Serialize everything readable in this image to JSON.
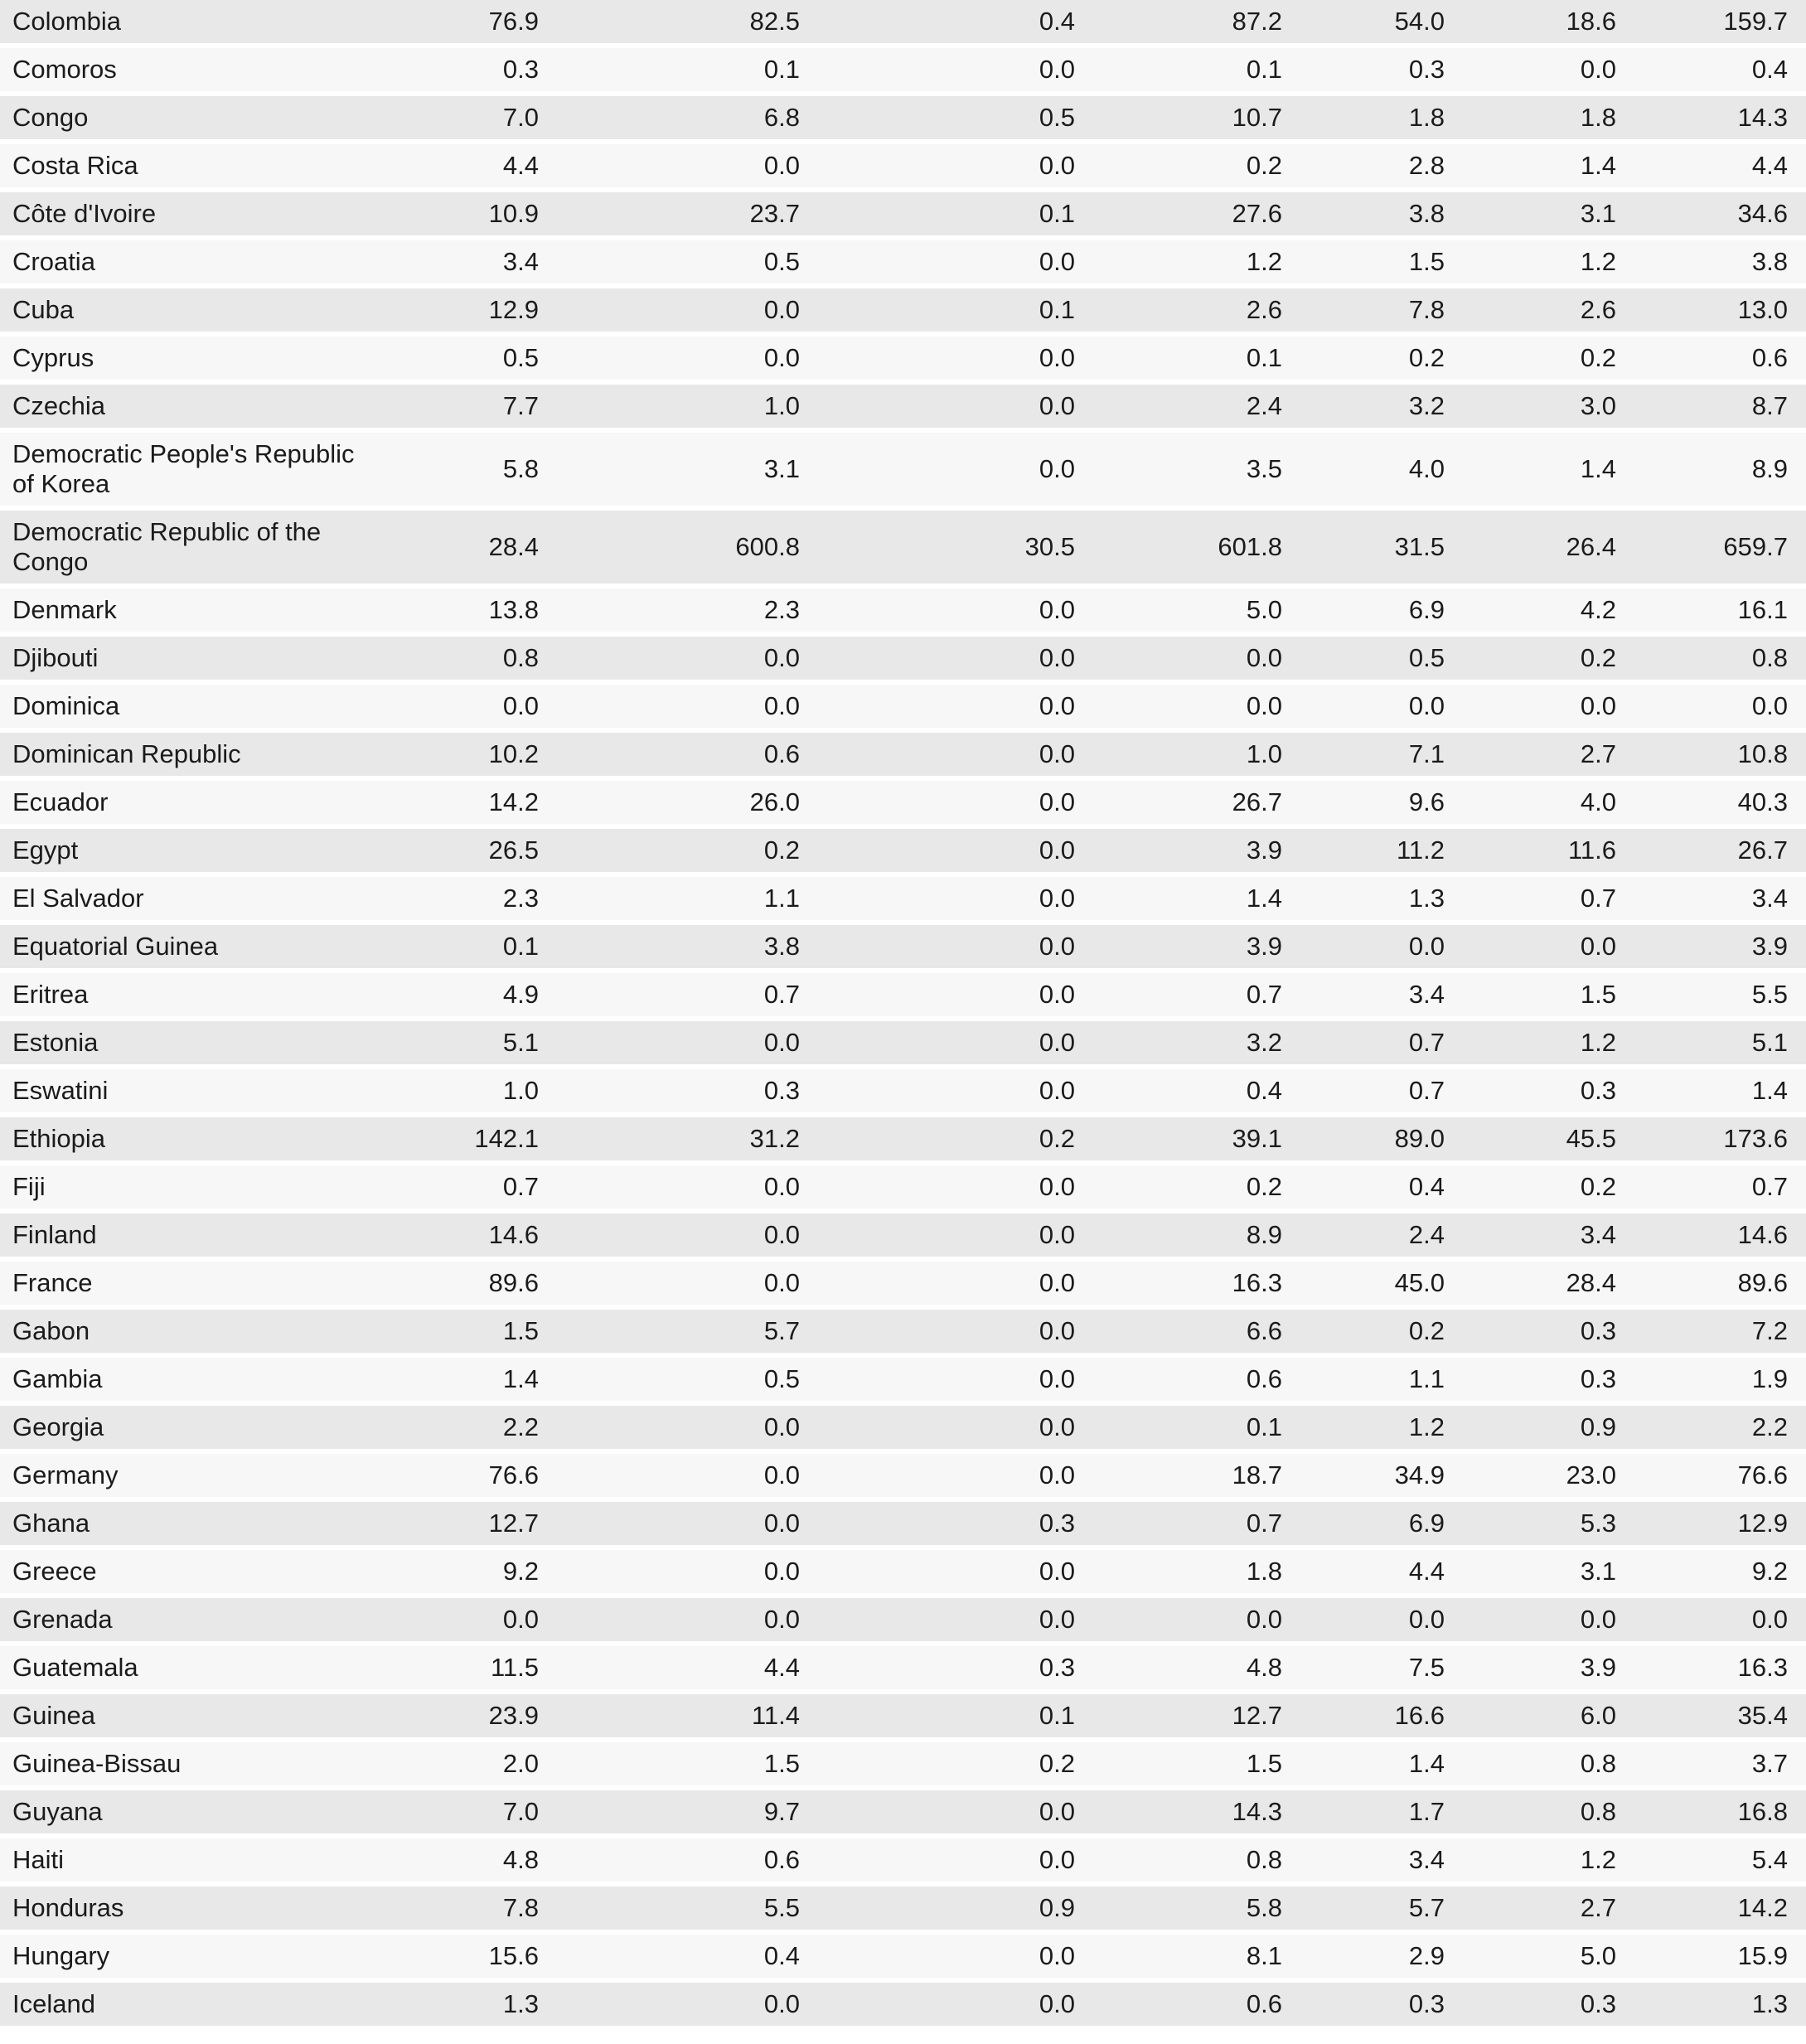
{
  "styles": {
    "shaded_row_color": "#e8e8e8",
    "plain_row_color": "#f7f7f7",
    "gap_color": "#ffffff",
    "text_color": "#1b1b1b"
  },
  "chart_data": {
    "type": "table",
    "title": "",
    "columns": [
      "country",
      "v1",
      "v2",
      "v3",
      "v4",
      "v5",
      "v6",
      "v7"
    ],
    "rows": [
      {
        "country": "Colombia",
        "values": [
          "76.9",
          "82.5",
          "0.4",
          "87.2",
          "54.0",
          "18.6",
          "159.7"
        ]
      },
      {
        "country": "Comoros",
        "values": [
          "0.3",
          "0.1",
          "0.0",
          "0.1",
          "0.3",
          "0.0",
          "0.4"
        ]
      },
      {
        "country": "Congo",
        "values": [
          "7.0",
          "6.8",
          "0.5",
          "10.7",
          "1.8",
          "1.8",
          "14.3"
        ]
      },
      {
        "country": "Costa Rica",
        "values": [
          "4.4",
          "0.0",
          "0.0",
          "0.2",
          "2.8",
          "1.4",
          "4.4"
        ]
      },
      {
        "country": "Côte d'Ivoire",
        "values": [
          "10.9",
          "23.7",
          "0.1",
          "27.6",
          "3.8",
          "3.1",
          "34.6"
        ]
      },
      {
        "country": "Croatia",
        "values": [
          "3.4",
          "0.5",
          "0.0",
          "1.2",
          "1.5",
          "1.2",
          "3.8"
        ]
      },
      {
        "country": "Cuba",
        "values": [
          "12.9",
          "0.0",
          "0.1",
          "2.6",
          "7.8",
          "2.6",
          "13.0"
        ]
      },
      {
        "country": "Cyprus",
        "values": [
          "0.5",
          "0.0",
          "0.0",
          "0.1",
          "0.2",
          "0.2",
          "0.6"
        ]
      },
      {
        "country": "Czechia",
        "values": [
          "7.7",
          "1.0",
          "0.0",
          "2.4",
          "3.2",
          "3.0",
          "8.7"
        ]
      },
      {
        "country": "Democratic People's Republic of Korea",
        "values": [
          "5.8",
          "3.1",
          "0.0",
          "3.5",
          "4.0",
          "1.4",
          "8.9"
        ]
      },
      {
        "country": "Democratic Republic of the Congo",
        "values": [
          "28.4",
          "600.8",
          "30.5",
          "601.8",
          "31.5",
          "26.4",
          "659.7"
        ]
      },
      {
        "country": "Denmark",
        "values": [
          "13.8",
          "2.3",
          "0.0",
          "5.0",
          "6.9",
          "4.2",
          "16.1"
        ]
      },
      {
        "country": "Djibouti",
        "values": [
          "0.8",
          "0.0",
          "0.0",
          "0.0",
          "0.5",
          "0.2",
          "0.8"
        ]
      },
      {
        "country": "Dominica",
        "values": [
          "0.0",
          "0.0",
          "0.0",
          "0.0",
          "0.0",
          "0.0",
          "0.0"
        ]
      },
      {
        "country": "Dominican Republic",
        "values": [
          "10.2",
          "0.6",
          "0.0",
          "1.0",
          "7.1",
          "2.7",
          "10.8"
        ]
      },
      {
        "country": "Ecuador",
        "values": [
          "14.2",
          "26.0",
          "0.0",
          "26.7",
          "9.6",
          "4.0",
          "40.3"
        ]
      },
      {
        "country": "Egypt",
        "values": [
          "26.5",
          "0.2",
          "0.0",
          "3.9",
          "11.2",
          "11.6",
          "26.7"
        ]
      },
      {
        "country": "El Salvador",
        "values": [
          "2.3",
          "1.1",
          "0.0",
          "1.4",
          "1.3",
          "0.7",
          "3.4"
        ]
      },
      {
        "country": "Equatorial Guinea",
        "values": [
          "0.1",
          "3.8",
          "0.0",
          "3.9",
          "0.0",
          "0.0",
          "3.9"
        ]
      },
      {
        "country": "Eritrea",
        "values": [
          "4.9",
          "0.7",
          "0.0",
          "0.7",
          "3.4",
          "1.5",
          "5.5"
        ]
      },
      {
        "country": "Estonia",
        "values": [
          "5.1",
          "0.0",
          "0.0",
          "3.2",
          "0.7",
          "1.2",
          "5.1"
        ]
      },
      {
        "country": "Eswatini",
        "values": [
          "1.0",
          "0.3",
          "0.0",
          "0.4",
          "0.7",
          "0.3",
          "1.4"
        ]
      },
      {
        "country": "Ethiopia",
        "values": [
          "142.1",
          "31.2",
          "0.2",
          "39.1",
          "89.0",
          "45.5",
          "173.6"
        ]
      },
      {
        "country": "Fiji",
        "values": [
          "0.7",
          "0.0",
          "0.0",
          "0.2",
          "0.4",
          "0.2",
          "0.7"
        ]
      },
      {
        "country": "Finland",
        "values": [
          "14.6",
          "0.0",
          "0.0",
          "8.9",
          "2.4",
          "3.4",
          "14.6"
        ]
      },
      {
        "country": "France",
        "values": [
          "89.6",
          "0.0",
          "0.0",
          "16.3",
          "45.0",
          "28.4",
          "89.6"
        ]
      },
      {
        "country": "Gabon",
        "values": [
          "1.5",
          "5.7",
          "0.0",
          "6.6",
          "0.2",
          "0.3",
          "7.2"
        ]
      },
      {
        "country": "Gambia",
        "values": [
          "1.4",
          "0.5",
          "0.0",
          "0.6",
          "1.1",
          "0.3",
          "1.9"
        ]
      },
      {
        "country": "Georgia",
        "values": [
          "2.2",
          "0.0",
          "0.0",
          "0.1",
          "1.2",
          "0.9",
          "2.2"
        ]
      },
      {
        "country": "Germany",
        "values": [
          "76.6",
          "0.0",
          "0.0",
          "18.7",
          "34.9",
          "23.0",
          "76.6"
        ]
      },
      {
        "country": "Ghana",
        "values": [
          "12.7",
          "0.0",
          "0.3",
          "0.7",
          "6.9",
          "5.3",
          "12.9"
        ]
      },
      {
        "country": "Greece",
        "values": [
          "9.2",
          "0.0",
          "0.0",
          "1.8",
          "4.4",
          "3.1",
          "9.2"
        ]
      },
      {
        "country": "Grenada",
        "values": [
          "0.0",
          "0.0",
          "0.0",
          "0.0",
          "0.0",
          "0.0",
          "0.0"
        ]
      },
      {
        "country": "Guatemala",
        "values": [
          "11.5",
          "4.4",
          "0.3",
          "4.8",
          "7.5",
          "3.9",
          "16.3"
        ]
      },
      {
        "country": "Guinea",
        "values": [
          "23.9",
          "11.4",
          "0.1",
          "12.7",
          "16.6",
          "6.0",
          "35.4"
        ]
      },
      {
        "country": "Guinea-Bissau",
        "values": [
          "2.0",
          "1.5",
          "0.2",
          "1.5",
          "1.4",
          "0.8",
          "3.7"
        ]
      },
      {
        "country": "Guyana",
        "values": [
          "7.0",
          "9.7",
          "0.0",
          "14.3",
          "1.7",
          "0.8",
          "16.8"
        ]
      },
      {
        "country": "Haiti",
        "values": [
          "4.8",
          "0.6",
          "0.0",
          "0.8",
          "3.4",
          "1.2",
          "5.4"
        ]
      },
      {
        "country": "Honduras",
        "values": [
          "7.8",
          "5.5",
          "0.9",
          "5.8",
          "5.7",
          "2.7",
          "14.2"
        ]
      },
      {
        "country": "Hungary",
        "values": [
          "15.6",
          "0.4",
          "0.0",
          "8.1",
          "2.9",
          "5.0",
          "15.9"
        ]
      },
      {
        "country": "Iceland",
        "values": [
          "1.3",
          "0.0",
          "0.0",
          "0.6",
          "0.3",
          "0.3",
          "1.3"
        ]
      }
    ]
  }
}
